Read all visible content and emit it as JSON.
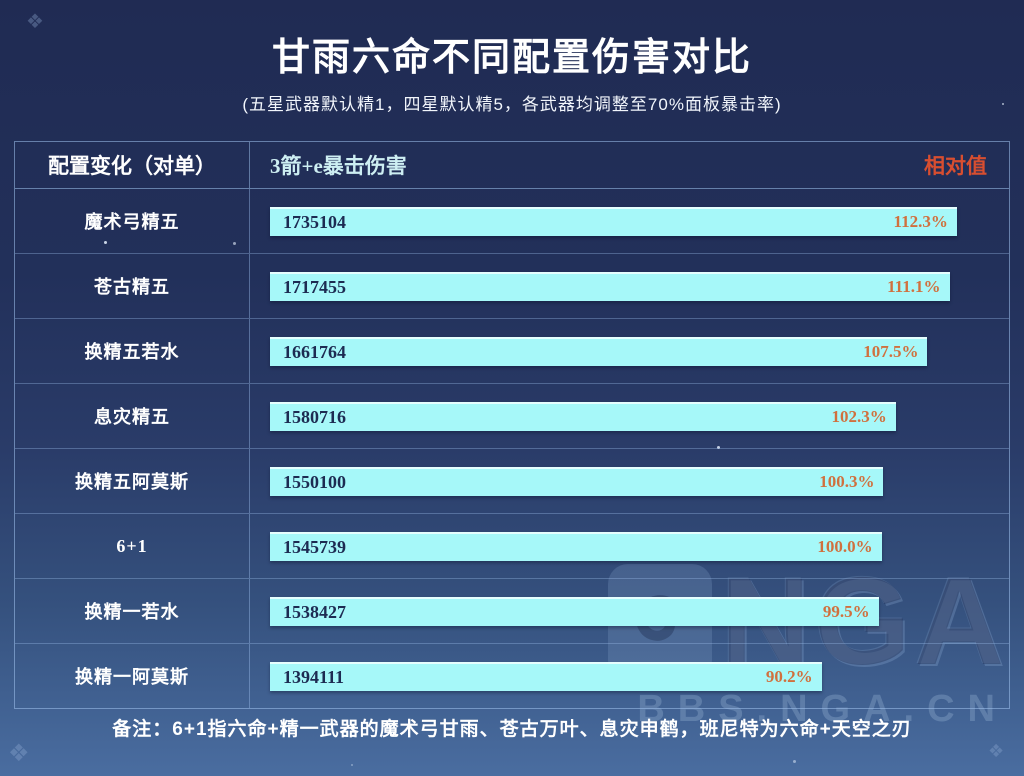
{
  "header": {
    "title": "甘雨六命不同配置伤害对比",
    "subtitle": "(五星武器默认精1，四星默认精5，各武器均调整至70%面板暴击率)"
  },
  "table": {
    "col1": "配置变化（对单）",
    "col2": "3箭+e暴击伤害",
    "col3": "相对值"
  },
  "rows": [
    {
      "label": "魔术弓精五",
      "value": "1735104",
      "percent": "112.3%",
      "pct_num": 112.3
    },
    {
      "label": "苍古精五",
      "value": "1717455",
      "percent": "111.1%",
      "pct_num": 111.1
    },
    {
      "label": "换精五若水",
      "value": "1661764",
      "percent": "107.5%",
      "pct_num": 107.5
    },
    {
      "label": "息灾精五",
      "value": "1580716",
      "percent": "102.3%",
      "pct_num": 102.3
    },
    {
      "label": "换精五阿莫斯",
      "value": "1550100",
      "percent": "100.3%",
      "pct_num": 100.3
    },
    {
      "label": "6+1",
      "value": "1545739",
      "percent": "100.0%",
      "pct_num": 100.0
    },
    {
      "label": "换精一若水",
      "value": "1538427",
      "percent": "99.5%",
      "pct_num": 99.5
    },
    {
      "label": "换精一阿莫斯",
      "value": "1394111",
      "percent": "90.2%",
      "pct_num": 90.2
    }
  ],
  "footer": {
    "note": "备注：6+1指六命+精一武器的魔术弓甘雨、苍古万叶、息灾申鹤，班尼特为六命+天空之刃"
  },
  "watermark": {
    "logo_text": "NGA",
    "sub_text": "BBS.NGA.CN"
  },
  "chart_data": {
    "type": "bar",
    "orientation": "horizontal",
    "title": "甘雨六命不同配置伤害对比",
    "subtitle": "(五星武器默认精1，四星默认精5，各武器均调整至70%面板暴击率)",
    "categories": [
      "魔术弓精五",
      "苍古精五",
      "换精五若水",
      "息灾精五",
      "换精五阿莫斯",
      "6+1",
      "换精一若水",
      "换精一阿莫斯"
    ],
    "series": [
      {
        "name": "3箭+e暴击伤害",
        "values": [
          1735104,
          1717455,
          1661764,
          1580716,
          1550100,
          1545739,
          1538427,
          1394111
        ]
      },
      {
        "name": "相对值(%)",
        "values": [
          112.3,
          111.1,
          107.5,
          102.3,
          100.3,
          100.0,
          99.5,
          90.2
        ]
      }
    ],
    "max_percent": 112.3,
    "baseline_percent": 100.0,
    "legend_position": "none",
    "grid": false,
    "note": "备注：6+1指六命+精一武器的魔术弓甘雨、苍古万叶、息灾申鹤，班尼特为六命+天空之刃"
  },
  "colors": {
    "bar_fill": "#a6f8f9",
    "bar_value_text": "#1d2b52",
    "percent_text": "#d0703e",
    "relative_header_text": "#d84e30",
    "metric_header_text": "#cdeef2",
    "background_top": "#202b53",
    "background_bottom": "#4a6da0",
    "table_border": "#a0c3ee"
  }
}
